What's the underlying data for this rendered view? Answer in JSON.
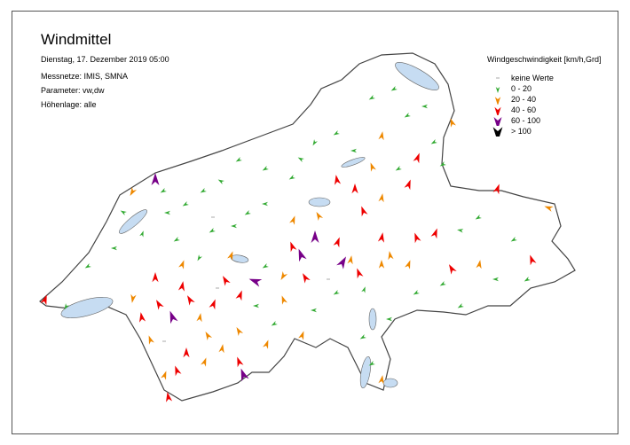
{
  "header": {
    "title": "Windmittel",
    "datetime": "Dienstag, 17. Dezember 2019 05:00",
    "networks": "Messnetze: IMIS, SMNA",
    "parameters": "Parameter: vw,dw",
    "elevation": "Höhenlage: alle"
  },
  "legend": {
    "title": "Windgeschwindigkeit [km/h,Grd]",
    "items": [
      {
        "label": "keine Werte",
        "color": "#aaaaaa",
        "icon": "dash"
      },
      {
        "label": "0 - 20",
        "color": "#33aa33",
        "icon": "arrow-small"
      },
      {
        "label": "20 - 40",
        "color": "#ee8800",
        "icon": "arrow-medium"
      },
      {
        "label": "40 - 60",
        "color": "#ee0000",
        "icon": "arrow-large"
      },
      {
        "label": "60 - 100",
        "color": "#770088",
        "icon": "arrow-larger"
      },
      {
        "label": "> 100",
        "color": "#000000",
        "icon": "arrow-largest"
      }
    ]
  },
  "map": {
    "land_color": "#ffffff",
    "border_color": "#444444",
    "lake_color": "#c6dcf2"
  }
}
